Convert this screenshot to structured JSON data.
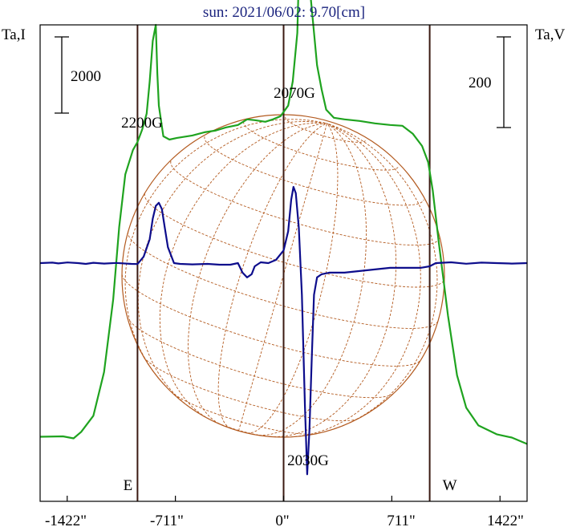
{
  "chart_data": {
    "type": "line",
    "title": "sun: 2021/06/02: 9.70[cm]",
    "ylabel_left": "Ta,I",
    "ylabel_right": "Ta,V",
    "scale_bar_left": "2000",
    "scale_bar_right": "200",
    "xlim": [
      -1600,
      1600
    ],
    "x_ticks": [
      {
        "value": -1422,
        "label": "-1422\""
      },
      {
        "value": -711,
        "label": "-711\""
      },
      {
        "value": 0,
        "label": "0\""
      },
      {
        "value": 711,
        "label": "711\""
      },
      {
        "value": 1422,
        "label": "1422\""
      }
    ],
    "limb_markers": [
      {
        "value": -960,
        "label": "E"
      },
      {
        "value": 0,
        "label": ""
      },
      {
        "value": 960,
        "label": "W"
      }
    ],
    "annotations": [
      {
        "text": "2200G",
        "x": -820
      },
      {
        "text": "2070G",
        "x": 70
      },
      {
        "text": "2030G",
        "x": 150
      }
    ],
    "series": [
      {
        "key": "I",
        "color": "#1fa31f",
        "axis": "Ta,I",
        "ylim": [
          -800,
          5100
        ],
        "points": [
          [
            -1600,
            0
          ],
          [
            -1450,
            5
          ],
          [
            -1380,
            -20
          ],
          [
            -1330,
            60
          ],
          [
            -1250,
            260
          ],
          [
            -1180,
            800
          ],
          [
            -1120,
            1700
          ],
          [
            -1080,
            2600
          ],
          [
            -1040,
            3250
          ],
          [
            -990,
            3550
          ],
          [
            -960,
            3650
          ],
          [
            -930,
            3800
          ],
          [
            -900,
            4000
          ],
          [
            -880,
            4400
          ],
          [
            -860,
            4900
          ],
          [
            -840,
            5100
          ],
          [
            -830,
            4500
          ],
          [
            -820,
            4100
          ],
          [
            -790,
            3720
          ],
          [
            -750,
            3680
          ],
          [
            -700,
            3700
          ],
          [
            -600,
            3730
          ],
          [
            -520,
            3770
          ],
          [
            -450,
            3790
          ],
          [
            -380,
            3830
          ],
          [
            -300,
            3860
          ],
          [
            -240,
            3930
          ],
          [
            -190,
            3920
          ],
          [
            -120,
            3900
          ],
          [
            -70,
            3930
          ],
          [
            -20,
            3970
          ],
          [
            30,
            4100
          ],
          [
            60,
            4400
          ],
          [
            90,
            5000
          ],
          [
            110,
            6400
          ],
          [
            130,
            6900
          ],
          [
            150,
            6300
          ],
          [
            175,
            5500
          ],
          [
            195,
            5100
          ],
          [
            220,
            4600
          ],
          [
            250,
            4300
          ],
          [
            280,
            4050
          ],
          [
            330,
            3950
          ],
          [
            400,
            3930
          ],
          [
            500,
            3910
          ],
          [
            600,
            3880
          ],
          [
            700,
            3860
          ],
          [
            780,
            3850
          ],
          [
            850,
            3750
          ],
          [
            910,
            3600
          ],
          [
            950,
            3400
          ],
          [
            980,
            3050
          ],
          [
            1020,
            2400
          ],
          [
            1080,
            1500
          ],
          [
            1140,
            760
          ],
          [
            1200,
            360
          ],
          [
            1280,
            140
          ],
          [
            1400,
            30
          ],
          [
            1500,
            -10
          ],
          [
            1600,
            -90
          ]
        ]
      },
      {
        "key": "V",
        "color": "#0d0d8c",
        "axis": "Ta,V",
        "ylim": [
          -150,
          150
        ],
        "points": [
          [
            -1600,
            0.0
          ],
          [
            -1520,
            0.3
          ],
          [
            -1480,
            -0.2
          ],
          [
            -1420,
            0.4
          ],
          [
            -1350,
            0.0
          ],
          [
            -1300,
            -0.5
          ],
          [
            -1250,
            0.2
          ],
          [
            -1180,
            -0.3
          ],
          [
            -1100,
            0.1
          ],
          [
            -1000,
            -0.5
          ],
          [
            -960,
            -0.6
          ],
          [
            -920,
            4.0
          ],
          [
            -880,
            15
          ],
          [
            -860,
            28
          ],
          [
            -840,
            36
          ],
          [
            -820,
            38
          ],
          [
            -800,
            34
          ],
          [
            -780,
            22
          ],
          [
            -760,
            10
          ],
          [
            -720,
            0.0
          ],
          [
            -680,
            -0.5
          ],
          [
            -600,
            -0.8
          ],
          [
            -500,
            -0.5
          ],
          [
            -420,
            -1.0
          ],
          [
            -350,
            -1.0
          ],
          [
            -300,
            0.0
          ],
          [
            -270,
            -6
          ],
          [
            -240,
            -9
          ],
          [
            -210,
            -7
          ],
          [
            -190,
            -2
          ],
          [
            -150,
            0.5
          ],
          [
            -100,
            0.0
          ],
          [
            -50,
            2.0
          ],
          [
            0,
            8
          ],
          [
            30,
            20
          ],
          [
            50,
            40
          ],
          [
            65,
            48
          ],
          [
            80,
            44
          ],
          [
            100,
            22
          ],
          [
            120,
            -20
          ],
          [
            140,
            -90
          ],
          [
            155,
            -133
          ],
          [
            170,
            -105
          ],
          [
            185,
            -60
          ],
          [
            200,
            -20
          ],
          [
            220,
            -9
          ],
          [
            250,
            -7
          ],
          [
            300,
            -6
          ],
          [
            400,
            -6
          ],
          [
            500,
            -5
          ],
          [
            600,
            -4
          ],
          [
            700,
            -3
          ],
          [
            800,
            -3
          ],
          [
            900,
            -3
          ],
          [
            960,
            -2
          ],
          [
            1000,
            0.0
          ],
          [
            1100,
            0.5
          ],
          [
            1200,
            -0.4
          ],
          [
            1300,
            0.3
          ],
          [
            1400,
            0.0
          ],
          [
            1500,
            -0.3
          ],
          [
            1600,
            0.0
          ]
        ]
      }
    ]
  }
}
